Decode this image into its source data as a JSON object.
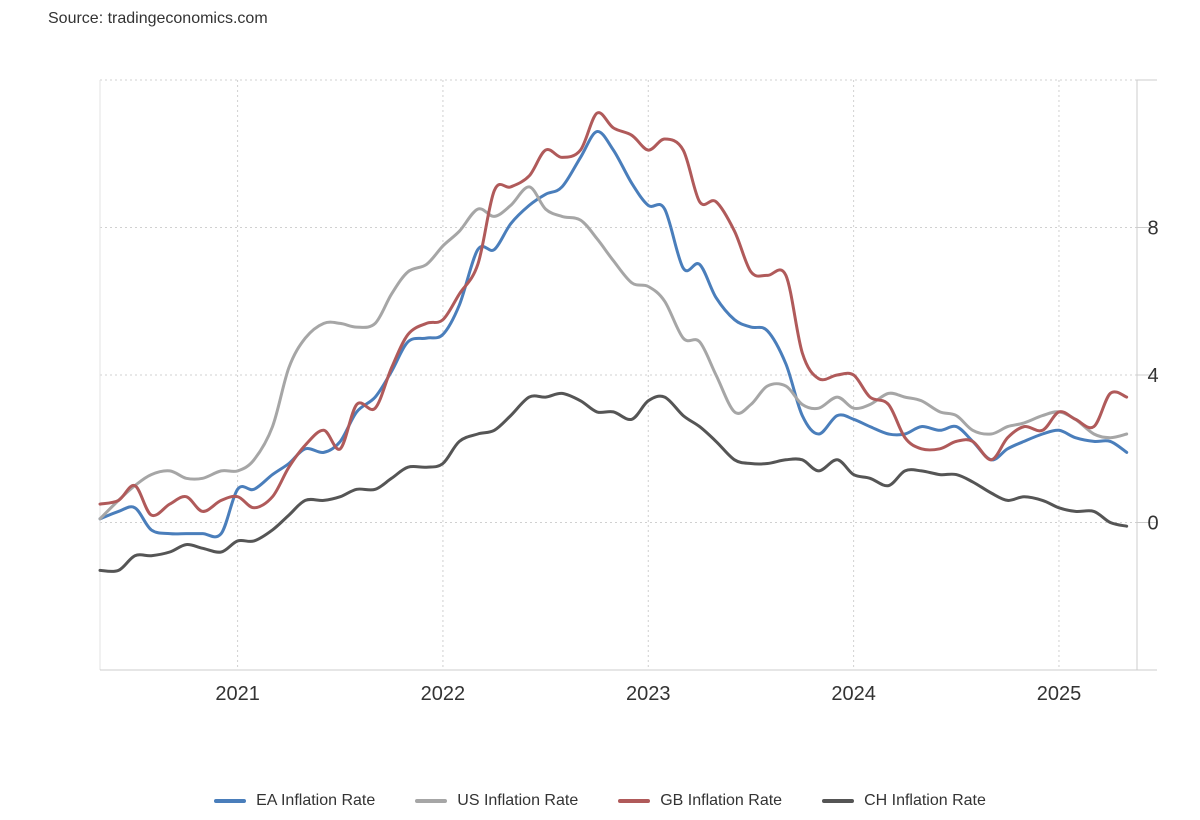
{
  "source": "Source: tradingeconomics.com",
  "chart_data": {
    "type": "line",
    "title": "",
    "xlabel": "",
    "ylabel": "",
    "xlim": [
      2020.33,
      2025.38
    ],
    "ylim": [
      -4,
      12
    ],
    "y_ticks": [
      0,
      4,
      8
    ],
    "x_ticks": [
      2021,
      2022,
      2023,
      2024,
      2025
    ],
    "x_tick_labels": [
      "2021",
      "2022",
      "2023",
      "2024",
      "2025"
    ],
    "y_tick_labels": [
      "0",
      "4",
      "8"
    ],
    "y_axis_position": "right",
    "grid": true,
    "legend_position": "bottom",
    "series": [
      {
        "name": "EA Inflation Rate",
        "color": "#4a7ebb",
        "x": [
          2020.33,
          2020.42,
          2020.5,
          2020.58,
          2020.67,
          2020.75,
          2020.83,
          2020.92,
          2021.0,
          2021.08,
          2021.17,
          2021.25,
          2021.33,
          2021.42,
          2021.5,
          2021.58,
          2021.67,
          2021.75,
          2021.83,
          2021.92,
          2022.0,
          2022.08,
          2022.17,
          2022.25,
          2022.33,
          2022.42,
          2022.5,
          2022.58,
          2022.67,
          2022.75,
          2022.83,
          2022.92,
          2023.0,
          2023.08,
          2023.17,
          2023.25,
          2023.33,
          2023.42,
          2023.5,
          2023.58,
          2023.67,
          2023.75,
          2023.83,
          2023.92,
          2024.0,
          2024.08,
          2024.17,
          2024.25,
          2024.33,
          2024.42,
          2024.5,
          2024.58,
          2024.67,
          2024.75,
          2024.83,
          2024.92,
          2025.0,
          2025.08,
          2025.17,
          2025.25,
          2025.33
        ],
        "values": [
          0.1,
          0.3,
          0.4,
          -0.2,
          -0.3,
          -0.3,
          -0.3,
          -0.3,
          0.9,
          0.9,
          1.3,
          1.6,
          2.0,
          1.9,
          2.2,
          3.0,
          3.4,
          4.1,
          4.9,
          5.0,
          5.1,
          5.9,
          7.4,
          7.4,
          8.1,
          8.6,
          8.9,
          9.1,
          9.9,
          10.6,
          10.1,
          9.2,
          8.6,
          8.5,
          6.9,
          7.0,
          6.1,
          5.5,
          5.3,
          5.2,
          4.3,
          2.9,
          2.4,
          2.9,
          2.8,
          2.6,
          2.4,
          2.4,
          2.6,
          2.5,
          2.6,
          2.2,
          1.7,
          2.0,
          2.2,
          2.4,
          2.5,
          2.3,
          2.2,
          2.2,
          1.9
        ]
      },
      {
        "name": "US Inflation Rate",
        "color": "#a6a6a6",
        "x": [
          2020.33,
          2020.42,
          2020.5,
          2020.58,
          2020.67,
          2020.75,
          2020.83,
          2020.92,
          2021.0,
          2021.08,
          2021.17,
          2021.25,
          2021.33,
          2021.42,
          2021.5,
          2021.58,
          2021.67,
          2021.75,
          2021.83,
          2021.92,
          2022.0,
          2022.08,
          2022.17,
          2022.25,
          2022.33,
          2022.42,
          2022.5,
          2022.58,
          2022.67,
          2022.75,
          2022.83,
          2022.92,
          2023.0,
          2023.08,
          2023.17,
          2023.25,
          2023.33,
          2023.42,
          2023.5,
          2023.58,
          2023.67,
          2023.75,
          2023.83,
          2023.92,
          2024.0,
          2024.08,
          2024.17,
          2024.25,
          2024.33,
          2024.42,
          2024.5,
          2024.58,
          2024.67,
          2024.75,
          2024.83,
          2024.92,
          2025.0,
          2025.08,
          2025.17,
          2025.25,
          2025.33
        ],
        "values": [
          0.1,
          0.6,
          1.0,
          1.3,
          1.4,
          1.2,
          1.2,
          1.4,
          1.4,
          1.7,
          2.6,
          4.2,
          5.0,
          5.4,
          5.4,
          5.3,
          5.4,
          6.2,
          6.8,
          7.0,
          7.5,
          7.9,
          8.5,
          8.3,
          8.6,
          9.1,
          8.5,
          8.3,
          8.2,
          7.7,
          7.1,
          6.5,
          6.4,
          6.0,
          5.0,
          4.9,
          4.0,
          3.0,
          3.2,
          3.7,
          3.7,
          3.2,
          3.1,
          3.4,
          3.1,
          3.2,
          3.5,
          3.4,
          3.3,
          3.0,
          2.9,
          2.5,
          2.4,
          2.6,
          2.7,
          2.9,
          3.0,
          2.8,
          2.4,
          2.3,
          2.4
        ]
      },
      {
        "name": "GB Inflation Rate",
        "color": "#b05a5a",
        "x": [
          2020.33,
          2020.42,
          2020.5,
          2020.58,
          2020.67,
          2020.75,
          2020.83,
          2020.92,
          2021.0,
          2021.08,
          2021.17,
          2021.25,
          2021.33,
          2021.42,
          2021.5,
          2021.58,
          2021.67,
          2021.75,
          2021.83,
          2021.92,
          2022.0,
          2022.08,
          2022.17,
          2022.25,
          2022.33,
          2022.42,
          2022.5,
          2022.58,
          2022.67,
          2022.75,
          2022.83,
          2022.92,
          2023.0,
          2023.08,
          2023.17,
          2023.25,
          2023.33,
          2023.42,
          2023.5,
          2023.58,
          2023.67,
          2023.75,
          2023.83,
          2023.92,
          2024.0,
          2024.08,
          2024.17,
          2024.25,
          2024.33,
          2024.42,
          2024.5,
          2024.58,
          2024.67,
          2024.75,
          2024.83,
          2024.92,
          2025.0,
          2025.08,
          2025.17,
          2025.25,
          2025.33
        ],
        "values": [
          0.5,
          0.6,
          1.0,
          0.2,
          0.5,
          0.7,
          0.3,
          0.6,
          0.7,
          0.4,
          0.7,
          1.5,
          2.1,
          2.5,
          2.0,
          3.2,
          3.1,
          4.2,
          5.1,
          5.4,
          5.5,
          6.2,
          7.0,
          9.0,
          9.1,
          9.4,
          10.1,
          9.9,
          10.1,
          11.1,
          10.7,
          10.5,
          10.1,
          10.4,
          10.1,
          8.7,
          8.7,
          7.9,
          6.8,
          6.7,
          6.7,
          4.6,
          3.9,
          4.0,
          4.0,
          3.4,
          3.2,
          2.3,
          2.0,
          2.0,
          2.2,
          2.2,
          1.7,
          2.3,
          2.6,
          2.5,
          3.0,
          2.8,
          2.6,
          3.5,
          3.4
        ]
      },
      {
        "name": "CH Inflation Rate",
        "color": "#555555",
        "x": [
          2020.33,
          2020.42,
          2020.5,
          2020.58,
          2020.67,
          2020.75,
          2020.83,
          2020.92,
          2021.0,
          2021.08,
          2021.17,
          2021.25,
          2021.33,
          2021.42,
          2021.5,
          2021.58,
          2021.67,
          2021.75,
          2021.83,
          2021.92,
          2022.0,
          2022.08,
          2022.17,
          2022.25,
          2022.33,
          2022.42,
          2022.5,
          2022.58,
          2022.67,
          2022.75,
          2022.83,
          2022.92,
          2023.0,
          2023.08,
          2023.17,
          2023.25,
          2023.33,
          2023.42,
          2023.5,
          2023.58,
          2023.67,
          2023.75,
          2023.83,
          2023.92,
          2024.0,
          2024.08,
          2024.17,
          2024.25,
          2024.33,
          2024.42,
          2024.5,
          2024.58,
          2024.67,
          2024.75,
          2024.83,
          2024.92,
          2025.0,
          2025.08,
          2025.17,
          2025.25,
          2025.33
        ],
        "values": [
          -1.3,
          -1.3,
          -0.9,
          -0.9,
          -0.8,
          -0.6,
          -0.7,
          -0.8,
          -0.5,
          -0.5,
          -0.2,
          0.2,
          0.6,
          0.6,
          0.7,
          0.9,
          0.9,
          1.2,
          1.5,
          1.5,
          1.6,
          2.2,
          2.4,
          2.5,
          2.9,
          3.4,
          3.4,
          3.5,
          3.3,
          3.0,
          3.0,
          2.8,
          3.3,
          3.4,
          2.9,
          2.6,
          2.2,
          1.7,
          1.6,
          1.6,
          1.7,
          1.7,
          1.4,
          1.7,
          1.3,
          1.2,
          1.0,
          1.4,
          1.4,
          1.3,
          1.3,
          1.1,
          0.8,
          0.6,
          0.7,
          0.6,
          0.4,
          0.3,
          0.3,
          0.0,
          -0.1
        ]
      }
    ]
  }
}
